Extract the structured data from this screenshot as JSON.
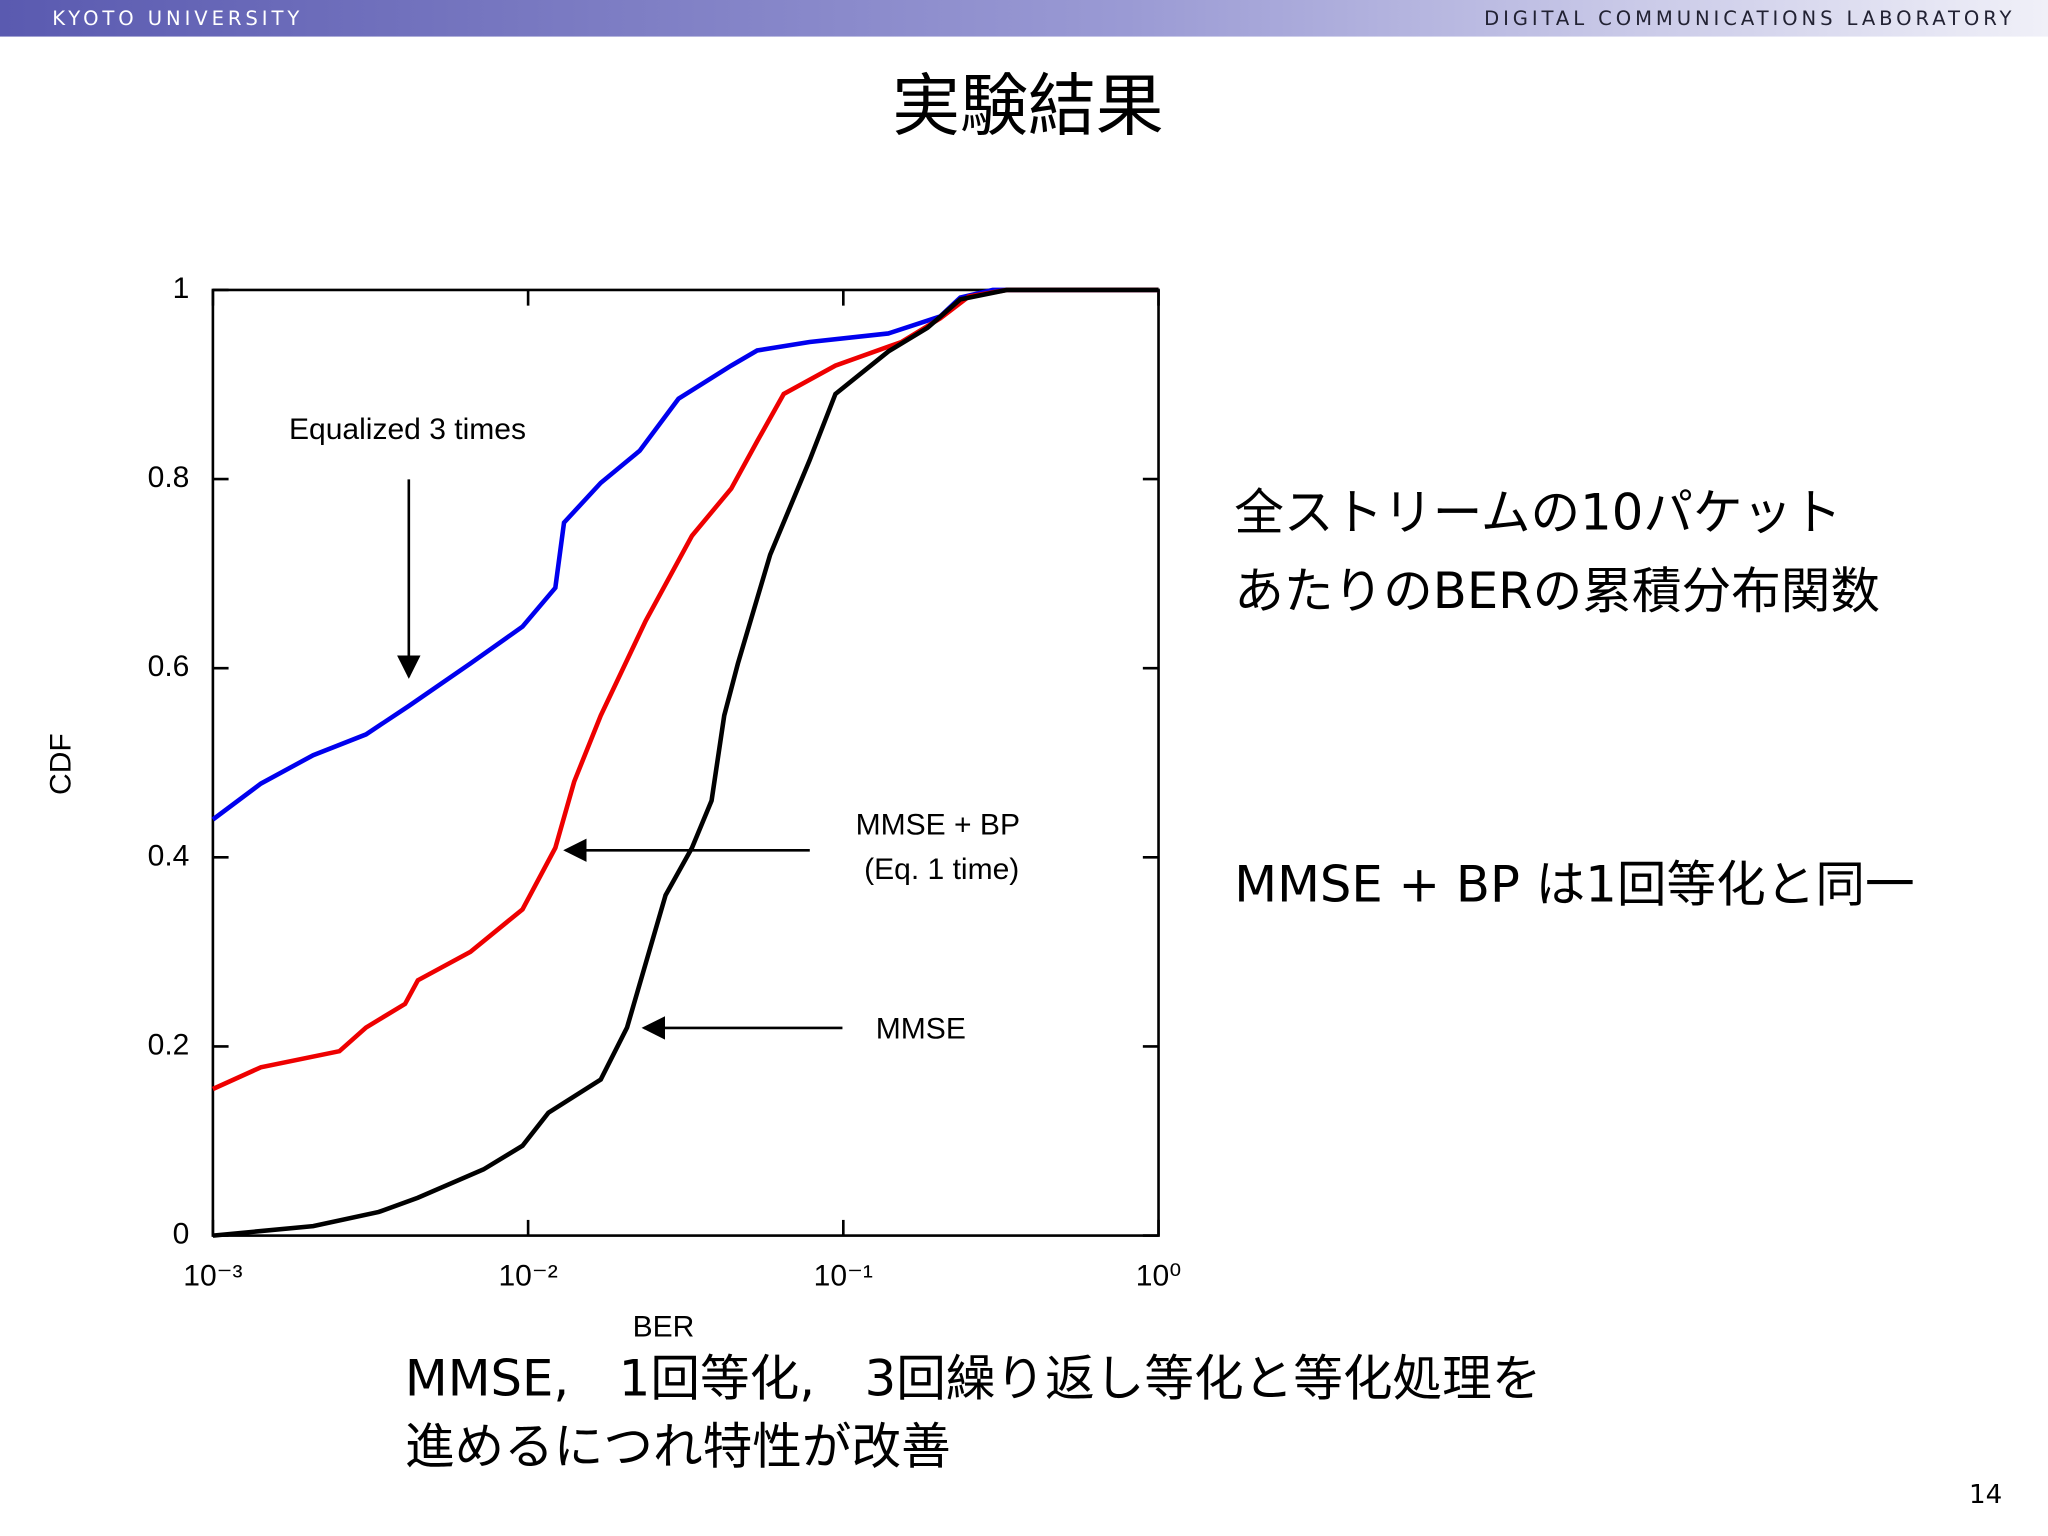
{
  "header": {
    "left": "Kyoto University",
    "right": "Digital Communications Laboratory"
  },
  "slide_title": "実験結果",
  "chart_data": {
    "type": "line",
    "xlabel": "BER",
    "ylabel": "CDF",
    "xscale": "log",
    "xlim": [
      0.001,
      1
    ],
    "ylim": [
      0,
      1
    ],
    "xticks": [
      {
        "value": 0.001,
        "label": "10⁻³"
      },
      {
        "value": 0.01,
        "label": "10⁻²"
      },
      {
        "value": 0.1,
        "label": "10⁻¹"
      },
      {
        "value": 1,
        "label": "10⁰"
      }
    ],
    "yticks": [
      0,
      0.2,
      0.4,
      0.6,
      0.8,
      1
    ],
    "annotations": [
      "Equalized 3 times",
      "MMSE + BP",
      "(Eq. 1 time)",
      "MMSE"
    ],
    "series": [
      {
        "color": "#0000ee",
        "x": [
          0.001,
          0.00142,
          0.00208,
          0.00306,
          0.00418,
          0.00656,
          0.0096,
          0.0122,
          0.013,
          0.017,
          0.0226,
          0.03,
          0.0441,
          0.0533,
          0.0782,
          0.139,
          0.203,
          0.235,
          0.298,
          1
        ],
        "values": [
          0.44,
          0.478,
          0.508,
          0.53,
          0.56,
          0.605,
          0.644,
          0.685,
          0.754,
          0.796,
          0.83,
          0.885,
          0.92,
          0.936,
          0.945,
          0.954,
          0.972,
          0.992,
          1,
          1
        ]
      },
      {
        "color": "#ee0000",
        "x": [
          0.001,
          0.00142,
          0.00252,
          0.00306,
          0.00407,
          0.00447,
          0.00656,
          0.0096,
          0.0122,
          0.014,
          0.017,
          0.0236,
          0.0331,
          0.0441,
          0.0533,
          0.0647,
          0.0944,
          0.153,
          0.203,
          0.25,
          0.33,
          1
        ],
        "values": [
          0.155,
          0.178,
          0.195,
          0.22,
          0.245,
          0.27,
          0.3,
          0.345,
          0.41,
          0.48,
          0.55,
          0.65,
          0.74,
          0.79,
          0.84,
          0.89,
          0.92,
          0.945,
          0.97,
          0.993,
          1,
          1
        ]
      },
      {
        "color": "#000000",
        "x": [
          0.001,
          0.00208,
          0.00336,
          0.00447,
          0.00722,
          0.0096,
          0.0116,
          0.017,
          0.0206,
          0.0273,
          0.0331,
          0.0382,
          0.0419,
          0.0463,
          0.0586,
          0.0782,
          0.0944,
          0.139,
          0.185,
          0.235,
          0.33,
          1
        ],
        "values": [
          0,
          0.01,
          0.025,
          0.04,
          0.07,
          0.095,
          0.13,
          0.165,
          0.22,
          0.36,
          0.41,
          0.46,
          0.55,
          0.605,
          0.72,
          0.82,
          0.89,
          0.935,
          0.96,
          0.99,
          1,
          1
        ]
      }
    ]
  },
  "notes": [
    "全ストリームの10パケット",
    "あたりのBERの累積分布関数",
    "MMSE + BP は1回等化と同一"
  ],
  "summary": [
    "MMSE,　1回等化,　3回繰り返し等化と等化処理を",
    "進めるにつれ特性が改善"
  ],
  "page_number": "14"
}
